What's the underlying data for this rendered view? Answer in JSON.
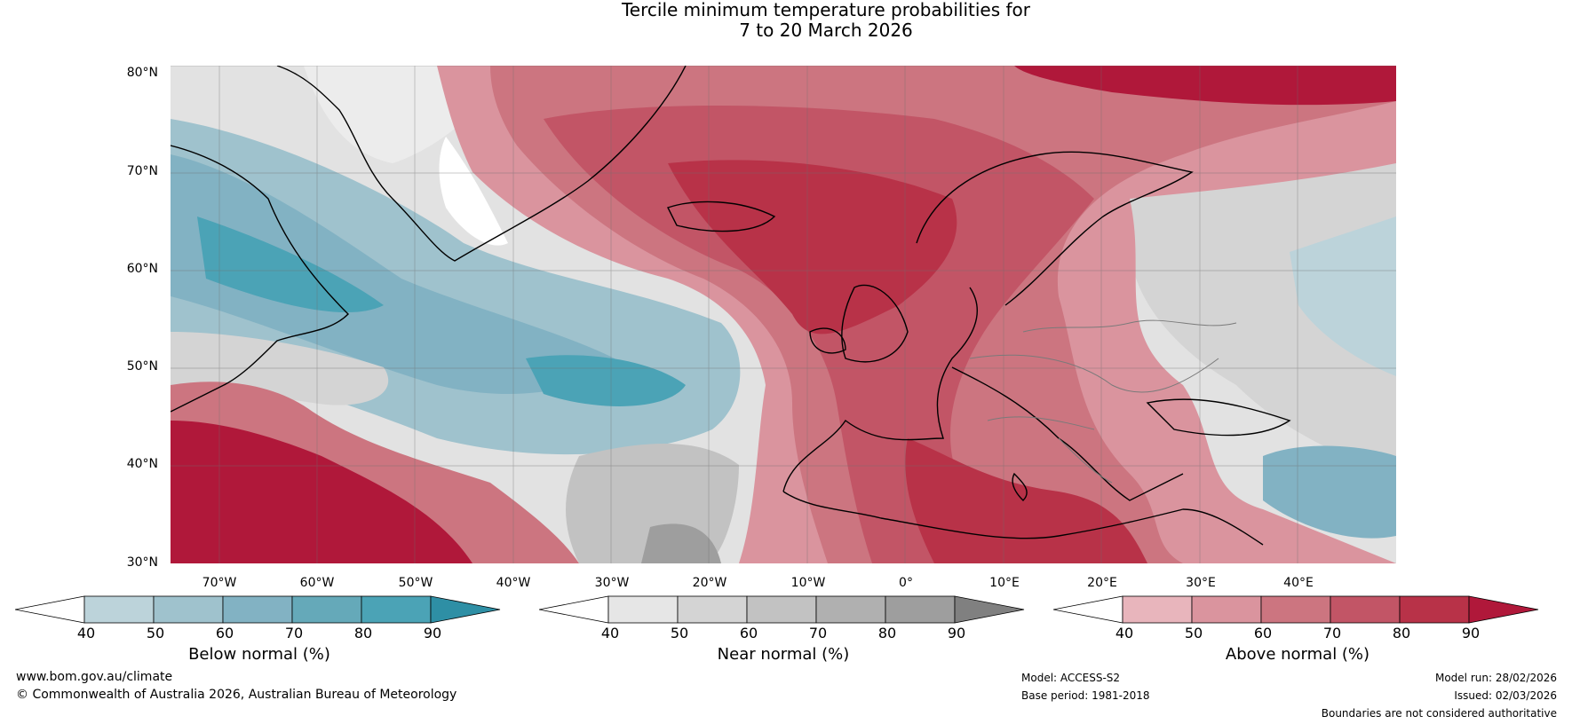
{
  "title": {
    "line1": "Tercile minimum temperature probabilities for",
    "line2": "7 to 20 March 2026"
  },
  "map": {
    "lat_labels": [
      "80°N",
      "70°N",
      "60°N",
      "50°N",
      "40°N",
      "30°N"
    ],
    "lon_labels": [
      "70°W",
      "60°W",
      "50°W",
      "40°W",
      "30°W",
      "20°W",
      "10°W",
      "0°",
      "10°E",
      "20°E",
      "30°E",
      "40°E"
    ]
  },
  "colorbars": [
    {
      "title": "Below normal (%)",
      "ticks": [
        "40",
        "50",
        "60",
        "70",
        "80",
        "90"
      ],
      "colors": [
        "#ffffff",
        "#bcd3da",
        "#9fc2cd",
        "#82b2c3",
        "#65a9b9",
        "#4ba3b6",
        "#2e8fa5"
      ]
    },
    {
      "title": "Near normal (%)",
      "ticks": [
        "40",
        "50",
        "60",
        "70",
        "80",
        "90"
      ],
      "colors": [
        "#ffffff",
        "#e6e6e6",
        "#d4d4d4",
        "#c2c2c2",
        "#b0b0b0",
        "#9e9e9e",
        "#808080"
      ]
    },
    {
      "title": "Above normal (%)",
      "ticks": [
        "40",
        "50",
        "60",
        "70",
        "80",
        "90"
      ],
      "colors": [
        "#ffffff",
        "#e8b5bc",
        "#da949e",
        "#cc7580",
        "#c25566",
        "#b83248",
        "#b0183a"
      ]
    }
  ],
  "footer": {
    "website": "www.bom.gov.au/climate",
    "copyright": "© Commonwealth of Australia 2026, Australian Bureau of Meteorology",
    "model": "Model: ACCESS-S2",
    "base_period": "Base period: 1981-2018",
    "model_run": "Model run: 28/02/2026",
    "issued": "Issued: 02/03/2026",
    "disclaimer": "Boundaries are not considered authoritative"
  }
}
